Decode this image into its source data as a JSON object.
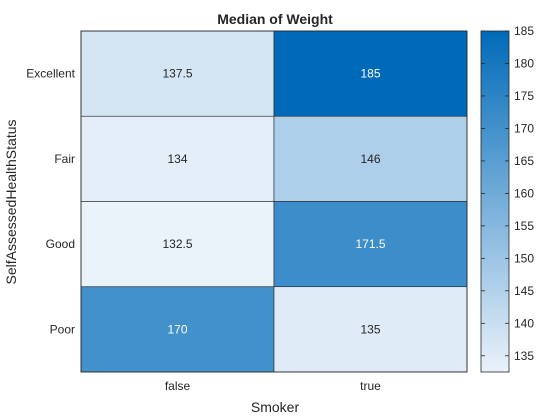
{
  "chart_data": {
    "type": "heatmap",
    "title": "Median of Weight",
    "xlabel": "Smoker",
    "ylabel": "SelfAssessedHealthStatus",
    "x_categories": [
      "false",
      "true"
    ],
    "y_categories": [
      "Excellent",
      "Fair",
      "Good",
      "Poor"
    ],
    "values": [
      [
        137.5,
        185
      ],
      [
        134,
        146
      ],
      [
        132.5,
        171.5
      ],
      [
        170,
        135
      ]
    ],
    "colorbar": {
      "range": [
        132.5,
        185
      ],
      "ticks": [
        135,
        140,
        145,
        150,
        155,
        160,
        165,
        170,
        175,
        180,
        185
      ]
    },
    "colormap": {
      "low": "#eaf2fa",
      "high": "#006ab8"
    }
  }
}
